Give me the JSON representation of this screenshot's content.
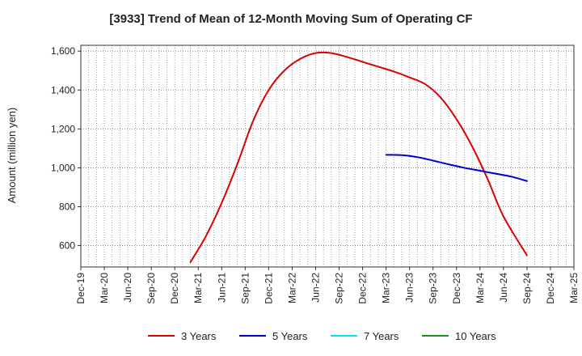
{
  "chart_data": {
    "type": "line",
    "title": "[3933]  Trend of Mean of 12-Month Moving Sum of Operating CF",
    "xlabel": "",
    "ylabel": "Amount (million yen)",
    "ylim": [
      490,
      1630
    ],
    "y_ticks": [
      600,
      800,
      1000,
      1200,
      1400,
      1600
    ],
    "y_tick_labels": [
      "600",
      "800",
      "1,000",
      "1,200",
      "1,400",
      "1,600"
    ],
    "x_tick_labels": [
      "Dec-19",
      "Mar-20",
      "Jun-20",
      "Sep-20",
      "Dec-20",
      "Mar-21",
      "Jun-21",
      "Sep-21",
      "Dec-21",
      "Mar-22",
      "Jun-22",
      "Sep-22",
      "Dec-22",
      "Mar-23",
      "Jun-23",
      "Sep-23",
      "Dec-23",
      "Mar-24",
      "Jun-24",
      "Sep-24",
      "Dec-24",
      "Mar-25"
    ],
    "xlim_months": [
      "2019-12",
      "2025-03"
    ],
    "grid": true,
    "legend_position": "bottom",
    "series": [
      {
        "name": "3 Years",
        "color": "#dd0000",
        "points": [
          [
            "2021-02",
            515
          ],
          [
            "2021-04",
            650
          ],
          [
            "2021-06",
            820
          ],
          [
            "2021-08",
            1020
          ],
          [
            "2021-10",
            1240
          ],
          [
            "2021-12",
            1400
          ],
          [
            "2022-02",
            1500
          ],
          [
            "2022-04",
            1560
          ],
          [
            "2022-06",
            1590
          ],
          [
            "2022-08",
            1590
          ],
          [
            "2022-10",
            1570
          ],
          [
            "2022-12",
            1545
          ],
          [
            "2023-02",
            1520
          ],
          [
            "2023-04",
            1495
          ],
          [
            "2023-06",
            1465
          ],
          [
            "2023-08",
            1430
          ],
          [
            "2023-10",
            1360
          ],
          [
            "2023-12",
            1250
          ],
          [
            "2024-02",
            1110
          ],
          [
            "2024-04",
            940
          ],
          [
            "2024-06",
            750
          ],
          [
            "2024-09",
            550
          ]
        ]
      },
      {
        "name": "5 Years",
        "color": "#0000cc",
        "points": [
          [
            "2023-03",
            1067
          ],
          [
            "2023-05",
            1065
          ],
          [
            "2023-07",
            1055
          ],
          [
            "2023-09",
            1037
          ],
          [
            "2023-11",
            1018
          ],
          [
            "2024-01",
            1000
          ],
          [
            "2024-03",
            985
          ],
          [
            "2024-05",
            970
          ],
          [
            "2024-07",
            955
          ],
          [
            "2024-09",
            932
          ]
        ]
      },
      {
        "name": "7 Years",
        "color": "#00e5ee",
        "points": []
      },
      {
        "name": "10 Years",
        "color": "#228b22",
        "points": []
      }
    ]
  }
}
